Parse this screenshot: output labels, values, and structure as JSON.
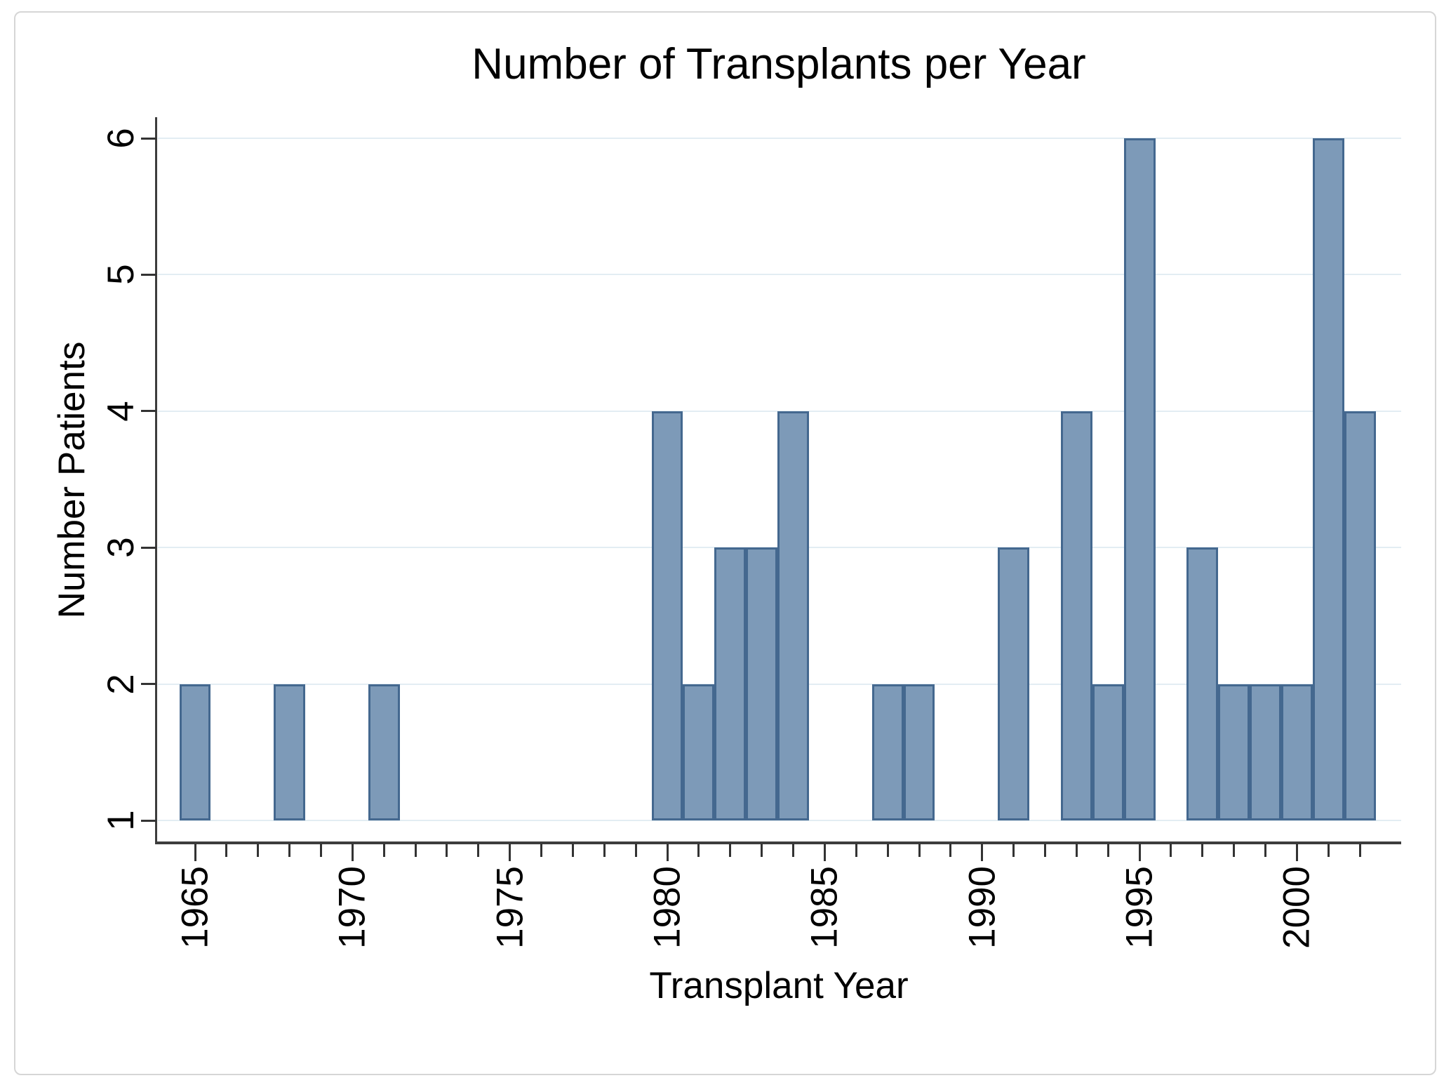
{
  "chart_data": {
    "type": "bar",
    "title": "Number of Transplants per Year",
    "xlabel": "Transplant Year",
    "ylabel": "Number Patients",
    "categories": [
      1965,
      1968,
      1971,
      1980,
      1981,
      1982,
      1983,
      1984,
      1987,
      1988,
      1991,
      1993,
      1994,
      1995,
      1997,
      1998,
      1999,
      2000,
      2001,
      2002
    ],
    "values": [
      2,
      2,
      2,
      4,
      2,
      3,
      3,
      4,
      2,
      2,
      3,
      4,
      2,
      6,
      3,
      2,
      2,
      2,
      6,
      4
    ],
    "bar_width_years": 1,
    "ylim": [
      1,
      6
    ],
    "xlim": [
      1963.8,
      2003.3
    ],
    "y_ticks": [
      1,
      2,
      3,
      4,
      5,
      6
    ],
    "x_major_ticks": [
      1965,
      1970,
      1975,
      1980,
      1985,
      1990,
      1995,
      2000
    ],
    "x_minor_tick_start": 1965,
    "x_minor_tick_end": 2002,
    "grid": "horizontal",
    "legend": "none",
    "colors": {
      "bar_fill": "#7d9ab8",
      "bar_border": "#44688f",
      "gridline": "#e3edf3",
      "axis": "#3d3d3d",
      "tick": "#333333",
      "text": "#000000",
      "figure_border": "#d6d6d6"
    }
  }
}
